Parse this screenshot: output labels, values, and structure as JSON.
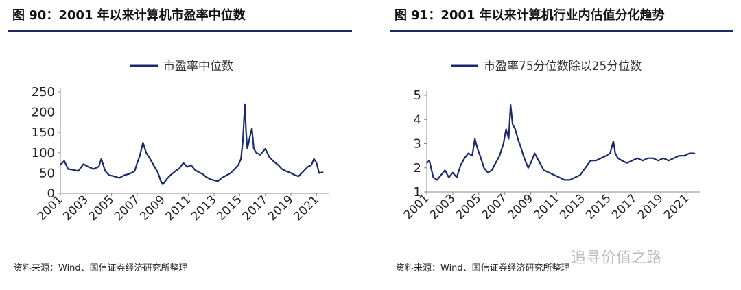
{
  "left": {
    "title": "图 90：2001 年以来计算机市盈率中位数",
    "source": "资料来源：Wind、国信证券经济研究所整理"
  },
  "right": {
    "title": "图 91：2001 年以来计算机行业内估值分化趋势",
    "source": "资料来源：Wind、国信证券经济研究所整理"
  },
  "watermark": "追寻价值之路",
  "chart_data": [
    {
      "type": "line",
      "legend_position": "top-center",
      "grid": false,
      "xlabel": "",
      "ylabel": "",
      "ylim": [
        0,
        250
      ],
      "yticks": [
        0,
        50,
        100,
        150,
        200,
        250
      ],
      "xlim": [
        2001,
        2022
      ],
      "xticks": [
        "2001",
        "2003",
        "2005",
        "2007",
        "2009",
        "2011",
        "2013",
        "2015",
        "2017",
        "2019",
        "2021"
      ],
      "color": "#1a2a6b",
      "series": [
        {
          "name": "市盈率中位数",
          "x": [
            2001.0,
            2001.3,
            2001.6,
            2002.0,
            2002.4,
            2002.8,
            2003.2,
            2003.6,
            2004.0,
            2004.2,
            2004.5,
            2004.8,
            2005.2,
            2005.6,
            2006.0,
            2006.4,
            2006.8,
            2007.0,
            2007.2,
            2007.45,
            2007.7,
            2008.0,
            2008.3,
            2008.6,
            2008.85,
            2009.0,
            2009.3,
            2009.6,
            2010.0,
            2010.3,
            2010.6,
            2010.9,
            2011.2,
            2011.5,
            2011.8,
            2012.1,
            2012.4,
            2012.7,
            2013.0,
            2013.3,
            2013.6,
            2014.0,
            2014.3,
            2014.6,
            2014.9,
            2015.1,
            2015.25,
            2015.4,
            2015.5,
            2015.6,
            2015.8,
            2015.95,
            2016.1,
            2016.3,
            2016.6,
            2017.0,
            2017.3,
            2017.6,
            2018.0,
            2018.3,
            2018.6,
            2019.0,
            2019.3,
            2019.6,
            2020.0,
            2020.3,
            2020.6,
            2020.8,
            2021.0,
            2021.2,
            2021.5
          ],
          "values": [
            70,
            80,
            60,
            58,
            55,
            72,
            65,
            60,
            66,
            85,
            55,
            45,
            42,
            38,
            45,
            48,
            55,
            75,
            92,
            125,
            100,
            85,
            68,
            52,
            30,
            22,
            35,
            45,
            55,
            62,
            75,
            65,
            70,
            58,
            52,
            48,
            40,
            35,
            32,
            30,
            38,
            45,
            50,
            60,
            70,
            85,
            130,
            220,
            150,
            110,
            140,
            160,
            110,
            100,
            95,
            110,
            90,
            80,
            70,
            60,
            55,
            50,
            45,
            42,
            55,
            65,
            70,
            85,
            75,
            50,
            52
          ]
        }
      ]
    },
    {
      "type": "line",
      "legend_position": "top-center",
      "grid": false,
      "xlabel": "",
      "ylabel": "",
      "ylim": [
        1,
        5
      ],
      "yticks": [
        1,
        2,
        3,
        4,
        5
      ],
      "xlim": [
        2001,
        2022
      ],
      "xticks": [
        "2001",
        "2003",
        "2005",
        "2007",
        "2009",
        "2011",
        "2013",
        "2015",
        "2017",
        "2019",
        "2021"
      ],
      "color": "#1a2a6b",
      "series": [
        {
          "name": "市盈率75分位数除以25分位数",
          "x": [
            2001.0,
            2001.2,
            2001.5,
            2001.8,
            2002.1,
            2002.4,
            2002.7,
            2003.0,
            2003.3,
            2003.6,
            2003.9,
            2004.2,
            2004.5,
            2004.7,
            2004.9,
            2005.1,
            2005.4,
            2005.7,
            2006.0,
            2006.3,
            2006.6,
            2006.9,
            2007.1,
            2007.3,
            2007.45,
            2007.6,
            2007.8,
            2008.0,
            2008.2,
            2008.5,
            2008.8,
            2009.0,
            2009.3,
            2009.6,
            2010.0,
            2010.4,
            2010.8,
            2011.2,
            2011.6,
            2012.0,
            2012.4,
            2012.8,
            2013.2,
            2013.6,
            2014.0,
            2014.4,
            2014.8,
            2015.1,
            2015.35,
            2015.5,
            2015.7,
            2016.0,
            2016.4,
            2016.8,
            2017.2,
            2017.6,
            2018.0,
            2018.4,
            2018.8,
            2019.2,
            2019.6,
            2020.0,
            2020.4,
            2020.8,
            2021.2,
            2021.6
          ],
          "values": [
            2.2,
            2.3,
            1.6,
            1.5,
            1.7,
            1.9,
            1.6,
            1.8,
            1.6,
            2.1,
            2.4,
            2.6,
            2.5,
            3.2,
            2.8,
            2.5,
            2.0,
            1.8,
            1.9,
            2.2,
            2.5,
            3.0,
            3.6,
            3.2,
            4.6,
            3.8,
            3.6,
            3.2,
            2.9,
            2.4,
            2.0,
            2.2,
            2.6,
            2.3,
            1.9,
            1.8,
            1.7,
            1.6,
            1.5,
            1.5,
            1.6,
            1.7,
            2.0,
            2.3,
            2.3,
            2.4,
            2.5,
            2.6,
            3.1,
            2.6,
            2.4,
            2.3,
            2.2,
            2.3,
            2.4,
            2.3,
            2.4,
            2.4,
            2.3,
            2.4,
            2.3,
            2.4,
            2.5,
            2.5,
            2.6,
            2.6
          ]
        }
      ]
    }
  ]
}
